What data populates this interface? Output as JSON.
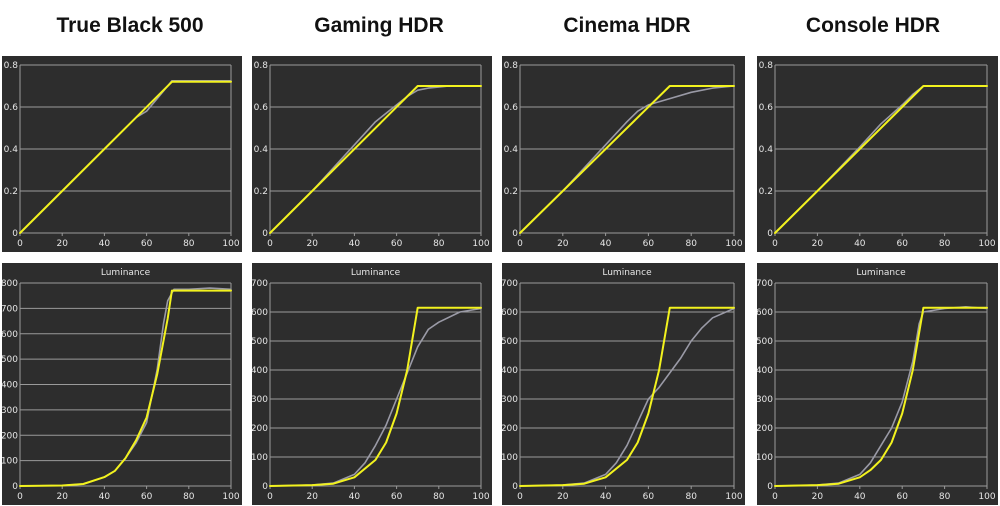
{
  "columns": [
    "True Black 500",
    "Gaming HDR",
    "Cinema HDR",
    "Console HDR"
  ],
  "colors": {
    "panel_bg": "#2d2d2d",
    "grid": "#9a9a9a",
    "target": "#f2f21e",
    "measured": "#9a9aa6",
    "text": "#e6e6e6"
  },
  "chart_data": [
    {
      "type": "line",
      "group": "True Black 500",
      "row": "eotf-normalized",
      "title": "",
      "xlim": [
        0,
        100
      ],
      "ylim": [
        0,
        0.8
      ],
      "x_ticks": [
        "0",
        "20",
        "40",
        "60",
        "80",
        "100"
      ],
      "y_ticks": [
        "0",
        "0.2",
        "0.4",
        "0.6",
        "0.8"
      ],
      "series": [
        {
          "role": "target",
          "points": [
            [
              0,
              0
            ],
            [
              72,
              0.72
            ],
            [
              100,
              0.72
            ]
          ]
        },
        {
          "role": "measured",
          "points": [
            [
              0,
              0
            ],
            [
              20,
              0.2
            ],
            [
              40,
              0.4
            ],
            [
              50,
              0.5
            ],
            [
              55,
              0.55
            ],
            [
              60,
              0.58
            ],
            [
              65,
              0.64
            ],
            [
              70,
              0.7
            ],
            [
              72,
              0.725
            ],
            [
              80,
              0.725
            ],
            [
              100,
              0.725
            ]
          ]
        }
      ]
    },
    {
      "type": "line",
      "group": "Gaming HDR",
      "row": "eotf-normalized",
      "title": "",
      "xlim": [
        0,
        100
      ],
      "ylim": [
        0,
        0.8
      ],
      "x_ticks": [
        "0",
        "20",
        "40",
        "60",
        "80",
        "100"
      ],
      "y_ticks": [
        "0",
        "0.2",
        "0.4",
        "0.6",
        "0.8"
      ],
      "series": [
        {
          "role": "target",
          "points": [
            [
              0,
              0
            ],
            [
              70,
              0.7
            ],
            [
              100,
              0.7
            ]
          ]
        },
        {
          "role": "measured",
          "points": [
            [
              0,
              0
            ],
            [
              20,
              0.2
            ],
            [
              40,
              0.42
            ],
            [
              50,
              0.53
            ],
            [
              60,
              0.61
            ],
            [
              65,
              0.65
            ],
            [
              70,
              0.68
            ],
            [
              75,
              0.69
            ],
            [
              85,
              0.7
            ],
            [
              100,
              0.7
            ]
          ]
        }
      ]
    },
    {
      "type": "line",
      "group": "Cinema HDR",
      "row": "eotf-normalized",
      "title": "",
      "xlim": [
        0,
        100
      ],
      "ylim": [
        0,
        0.8
      ],
      "x_ticks": [
        "0",
        "20",
        "40",
        "60",
        "80",
        "100"
      ],
      "y_ticks": [
        "0",
        "0.2",
        "0.4",
        "0.6",
        "0.8"
      ],
      "series": [
        {
          "role": "target",
          "points": [
            [
              0,
              0
            ],
            [
              70,
              0.7
            ],
            [
              100,
              0.7
            ]
          ]
        },
        {
          "role": "measured",
          "points": [
            [
              0,
              0
            ],
            [
              20,
              0.2
            ],
            [
              40,
              0.42
            ],
            [
              50,
              0.53
            ],
            [
              55,
              0.58
            ],
            [
              60,
              0.61
            ],
            [
              70,
              0.64
            ],
            [
              80,
              0.67
            ],
            [
              90,
              0.69
            ],
            [
              100,
              0.7
            ]
          ]
        }
      ]
    },
    {
      "type": "line",
      "group": "Console HDR",
      "row": "eotf-normalized",
      "title": "",
      "xlim": [
        0,
        100
      ],
      "ylim": [
        0,
        0.8
      ],
      "x_ticks": [
        "0",
        "20",
        "40",
        "60",
        "80",
        "100"
      ],
      "y_ticks": [
        "0",
        "0.2",
        "0.4",
        "0.6",
        "0.8"
      ],
      "series": [
        {
          "role": "target",
          "points": [
            [
              0,
              0
            ],
            [
              70,
              0.7
            ],
            [
              100,
              0.7
            ]
          ]
        },
        {
          "role": "measured",
          "points": [
            [
              0,
              0
            ],
            [
              20,
              0.2
            ],
            [
              40,
              0.41
            ],
            [
              50,
              0.52
            ],
            [
              60,
              0.61
            ],
            [
              65,
              0.66
            ],
            [
              70,
              0.7
            ],
            [
              100,
              0.7
            ]
          ]
        }
      ]
    },
    {
      "type": "line",
      "group": "True Black 500",
      "row": "luminance",
      "title": "Luminance",
      "xlim": [
        0,
        100
      ],
      "ylim": [
        0,
        800
      ],
      "x_ticks": [
        "0",
        "20",
        "40",
        "60",
        "80",
        "100"
      ],
      "y_ticks": [
        "0",
        "100",
        "200",
        "300",
        "400",
        "500",
        "600",
        "700",
        "800"
      ],
      "series": [
        {
          "role": "target",
          "points": [
            [
              0,
              0
            ],
            [
              20,
              2
            ],
            [
              30,
              8
            ],
            [
              40,
              35
            ],
            [
              45,
              60
            ],
            [
              50,
              110
            ],
            [
              55,
              180
            ],
            [
              60,
              270
            ],
            [
              65,
              440
            ],
            [
              70,
              660
            ],
            [
              72,
              770
            ],
            [
              100,
              770
            ]
          ]
        },
        {
          "role": "measured",
          "points": [
            [
              0,
              0
            ],
            [
              20,
              2
            ],
            [
              30,
              8
            ],
            [
              40,
              35
            ],
            [
              45,
              60
            ],
            [
              50,
              110
            ],
            [
              55,
              170
            ],
            [
              60,
              250
            ],
            [
              65,
              460
            ],
            [
              68,
              640
            ],
            [
              70,
              730
            ],
            [
              73,
              775
            ],
            [
              80,
              775
            ],
            [
              90,
              780
            ],
            [
              100,
              775
            ]
          ]
        }
      ]
    },
    {
      "type": "line",
      "group": "Gaming HDR",
      "row": "luminance",
      "title": "Luminance",
      "xlim": [
        0,
        100
      ],
      "ylim": [
        0,
        700
      ],
      "x_ticks": [
        "0",
        "20",
        "40",
        "60",
        "80",
        "100"
      ],
      "y_ticks": [
        "0",
        "100",
        "200",
        "300",
        "400",
        "500",
        "600",
        "700"
      ],
      "series": [
        {
          "role": "target",
          "points": [
            [
              0,
              0
            ],
            [
              20,
              3
            ],
            [
              30,
              8
            ],
            [
              40,
              30
            ],
            [
              50,
              90
            ],
            [
              55,
              150
            ],
            [
              60,
              250
            ],
            [
              65,
              400
            ],
            [
              70,
              615
            ],
            [
              100,
              615
            ]
          ]
        },
        {
          "role": "measured",
          "points": [
            [
              0,
              0
            ],
            [
              20,
              3
            ],
            [
              30,
              10
            ],
            [
              40,
              40
            ],
            [
              45,
              80
            ],
            [
              50,
              140
            ],
            [
              55,
              210
            ],
            [
              60,
              300
            ],
            [
              65,
              390
            ],
            [
              70,
              480
            ],
            [
              75,
              540
            ],
            [
              80,
              565
            ],
            [
              90,
              600
            ],
            [
              100,
              612
            ]
          ]
        }
      ]
    },
    {
      "type": "line",
      "group": "Cinema HDR",
      "row": "luminance",
      "title": "Luminance",
      "xlim": [
        0,
        100
      ],
      "ylim": [
        0,
        700
      ],
      "x_ticks": [
        "0",
        "20",
        "40",
        "60",
        "80",
        "100"
      ],
      "y_ticks": [
        "0",
        "100",
        "200",
        "300",
        "400",
        "500",
        "600",
        "700"
      ],
      "series": [
        {
          "role": "target",
          "points": [
            [
              0,
              0
            ],
            [
              20,
              3
            ],
            [
              30,
              8
            ],
            [
              40,
              30
            ],
            [
              50,
              90
            ],
            [
              55,
              150
            ],
            [
              60,
              250
            ],
            [
              65,
              400
            ],
            [
              70,
              615
            ],
            [
              100,
              615
            ]
          ]
        },
        {
          "role": "measured",
          "points": [
            [
              0,
              0
            ],
            [
              20,
              3
            ],
            [
              30,
              10
            ],
            [
              40,
              40
            ],
            [
              45,
              80
            ],
            [
              50,
              140
            ],
            [
              55,
              220
            ],
            [
              60,
              300
            ],
            [
              65,
              340
            ],
            [
              70,
              390
            ],
            [
              75,
              440
            ],
            [
              80,
              500
            ],
            [
              85,
              545
            ],
            [
              90,
              580
            ],
            [
              100,
              612
            ]
          ]
        }
      ]
    },
    {
      "type": "line",
      "group": "Console HDR",
      "row": "luminance",
      "title": "Luminance",
      "xlim": [
        0,
        100
      ],
      "ylim": [
        0,
        700
      ],
      "x_ticks": [
        "0",
        "20",
        "40",
        "60",
        "80",
        "100"
      ],
      "y_ticks": [
        "0",
        "100",
        "200",
        "300",
        "400",
        "500",
        "600",
        "700"
      ],
      "series": [
        {
          "role": "target",
          "points": [
            [
              0,
              0
            ],
            [
              20,
              3
            ],
            [
              30,
              8
            ],
            [
              40,
              30
            ],
            [
              45,
              55
            ],
            [
              50,
              90
            ],
            [
              55,
              150
            ],
            [
              60,
              250
            ],
            [
              65,
              400
            ],
            [
              70,
              615
            ],
            [
              100,
              615
            ]
          ]
        },
        {
          "role": "measured",
          "points": [
            [
              0,
              0
            ],
            [
              20,
              3
            ],
            [
              30,
              10
            ],
            [
              40,
              40
            ],
            [
              45,
              80
            ],
            [
              50,
              140
            ],
            [
              55,
              200
            ],
            [
              60,
              290
            ],
            [
              65,
              430
            ],
            [
              68,
              560
            ],
            [
              70,
              600
            ],
            [
              80,
              612
            ],
            [
              90,
              618
            ],
            [
              100,
              612
            ]
          ]
        }
      ]
    }
  ]
}
